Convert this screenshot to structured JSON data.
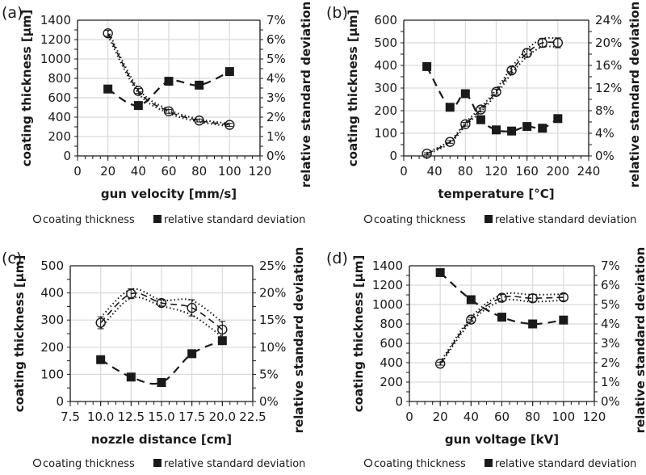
{
  "chart_data": [
    {
      "type": "scatter",
      "panel_label": "(a)",
      "xlabel": "gun velocity [mm/s]",
      "ylabel": "coating thickness [µm]",
      "y2label": "relative standard deviation",
      "xlim": [
        0,
        120
      ],
      "xticks": [
        0,
        20,
        40,
        60,
        80,
        100,
        120
      ],
      "xtick_labels": [
        "0",
        "20",
        "40",
        "60",
        "80",
        "100",
        "120"
      ],
      "ylim": [
        0,
        1400
      ],
      "yticks": [
        0,
        200,
        400,
        600,
        800,
        1000,
        1200,
        1400
      ],
      "ytick_labels": [
        "0",
        "200",
        "400",
        "600",
        "800",
        "1000",
        "1200",
        "1400"
      ],
      "y2lim": [
        0,
        7
      ],
      "y2ticks": [
        0,
        1,
        2,
        3,
        4,
        5,
        6,
        7
      ],
      "y2tick_labels": [
        "0%",
        "1%",
        "2%",
        "3%",
        "4%",
        "5%",
        "6%",
        "7%"
      ],
      "grid": true,
      "series": [
        {
          "name": "coating thickness",
          "axis": "left",
          "marker": "open-circle",
          "x": [
            20,
            40,
            60,
            80,
            100
          ],
          "values": [
            1265,
            670,
            460,
            365,
            320
          ],
          "error": [
            30,
            25,
            20,
            15,
            15
          ]
        },
        {
          "name": "relative standard deviation",
          "axis": "right",
          "marker": "filled-square",
          "x": [
            20,
            40,
            60,
            80,
            100
          ],
          "values": [
            3.45,
            2.6,
            3.85,
            3.65,
            4.35
          ]
        }
      ],
      "legend": {
        "position": "bottom",
        "items": [
          "coating thickness",
          "relative standard deviation"
        ]
      }
    },
    {
      "type": "scatter",
      "panel_label": "(b)",
      "xlabel": "temperature [°C]",
      "ylabel": "coating thickness [µm]",
      "y2label": "relative standard deviation",
      "xlim": [
        0,
        240
      ],
      "xticks": [
        0,
        40,
        80,
        120,
        160,
        200,
        240
      ],
      "xtick_labels": [
        "0",
        "40",
        "80",
        "120",
        "160",
        "200",
        "240"
      ],
      "ylim": [
        0,
        600
      ],
      "yticks": [
        0,
        100,
        200,
        300,
        400,
        500,
        600
      ],
      "ytick_labels": [
        "0",
        "100",
        "200",
        "300",
        "400",
        "500",
        "600"
      ],
      "y2lim": [
        0,
        24
      ],
      "y2ticks": [
        0,
        4,
        8,
        12,
        16,
        20,
        24
      ],
      "y2tick_labels": [
        "0%",
        "4%",
        "8%",
        "12%",
        "16%",
        "20%",
        "24%"
      ],
      "grid": true,
      "series": [
        {
          "name": "coating thickness",
          "axis": "left",
          "marker": "open-circle",
          "x": [
            30,
            60,
            80,
            100,
            120,
            140,
            160,
            180,
            200
          ],
          "values": [
            10,
            62,
            140,
            205,
            283,
            378,
            455,
            500,
            500
          ],
          "error": [
            4,
            6,
            8,
            10,
            12,
            15,
            18,
            20,
            22
          ]
        },
        {
          "name": "relative standard deviation",
          "axis": "right",
          "marker": "filled-square",
          "x": [
            30,
            60,
            80,
            100,
            120,
            140,
            160,
            180,
            200
          ],
          "values": [
            15.8,
            8.6,
            11.0,
            6.4,
            4.6,
            4.4,
            5.2,
            4.9,
            6.6
          ]
        }
      ],
      "legend": {
        "position": "bottom",
        "items": [
          "coating thickness",
          "relative standard deviation"
        ]
      }
    },
    {
      "type": "scatter",
      "panel_label": "(c)",
      "xlabel": "nozzle distance [cm]",
      "ylabel": "coating thickness [µm]",
      "y2label": "relative standard deviation",
      "xlim": [
        7.5,
        22.5
      ],
      "xticks": [
        7.5,
        10,
        12.5,
        15,
        17.5,
        20,
        22.5
      ],
      "xtick_labels": [
        "7.5",
        "10.0",
        "12.5",
        "15.0",
        "17.5",
        "20.0",
        "22.5"
      ],
      "ylim": [
        0,
        500
      ],
      "yticks": [
        0,
        100,
        200,
        300,
        400,
        500
      ],
      "ytick_labels": [
        "0",
        "100",
        "200",
        "300",
        "400",
        "500"
      ],
      "y2lim": [
        0,
        25
      ],
      "y2ticks": [
        0,
        5,
        10,
        15,
        20,
        25
      ],
      "y2tick_labels": [
        "0%",
        "5%",
        "10%",
        "15%",
        "20%",
        "25%"
      ],
      "grid": true,
      "series": [
        {
          "name": "coating thickness",
          "axis": "left",
          "marker": "open-circle",
          "x": [
            10,
            12.5,
            15,
            17.5,
            20
          ],
          "values": [
            290,
            397,
            363,
            345,
            265
          ],
          "error": [
            22,
            18,
            12,
            30,
            30
          ]
        },
        {
          "name": "relative standard deviation",
          "axis": "right",
          "marker": "filled-square",
          "x": [
            10,
            12.5,
            15,
            17.5,
            20
          ],
          "values": [
            7.7,
            4.5,
            3.5,
            8.8,
            11.2
          ]
        }
      ],
      "legend": {
        "position": "bottom",
        "items": [
          "coating thickness",
          "relative standard deviation"
        ]
      }
    },
    {
      "type": "scatter",
      "panel_label": "(d)",
      "xlabel": "gun voltage [kV]",
      "ylabel": "coating thickness [µm]",
      "y2label": "relative standard deviation",
      "xlim": [
        0,
        120
      ],
      "xticks": [
        0,
        20,
        40,
        60,
        80,
        100,
        120
      ],
      "xtick_labels": [
        "0",
        "20",
        "40",
        "60",
        "80",
        "100",
        "120"
      ],
      "ylim": [
        0,
        1400
      ],
      "yticks": [
        0,
        200,
        400,
        600,
        800,
        1000,
        1200,
        1400
      ],
      "ytick_labels": [
        "0",
        "200",
        "400",
        "600",
        "800",
        "1000",
        "1200",
        "1400"
      ],
      "y2lim": [
        0,
        7
      ],
      "y2ticks": [
        0,
        1,
        2,
        3,
        4,
        5,
        6,
        7
      ],
      "y2tick_labels": [
        "0%",
        "1%",
        "2%",
        "3%",
        "4%",
        "5%",
        "6%",
        "7%"
      ],
      "grid": true,
      "series": [
        {
          "name": "coating thickness",
          "axis": "left",
          "marker": "open-circle",
          "x": [
            20,
            40,
            60,
            80,
            100
          ],
          "values": [
            390,
            845,
            1070,
            1065,
            1075
          ],
          "error": [
            15,
            25,
            35,
            40,
            35
          ]
        },
        {
          "name": "relative standard deviation",
          "axis": "right",
          "marker": "filled-square",
          "x": [
            20,
            40,
            60,
            80,
            100
          ],
          "values": [
            6.65,
            5.25,
            4.35,
            4.0,
            4.2
          ]
        }
      ],
      "legend": {
        "position": "bottom",
        "items": [
          "coating thickness",
          "relative standard deviation"
        ]
      }
    }
  ]
}
